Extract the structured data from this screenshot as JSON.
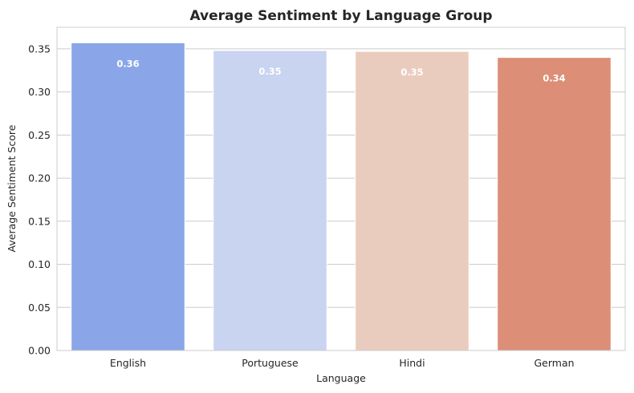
{
  "chart_data": {
    "type": "bar",
    "title": "Average Sentiment by Language Group",
    "xlabel": "Language",
    "ylabel": "Average Sentiment Score",
    "categories": [
      "English",
      "Portuguese",
      "Hindi",
      "German"
    ],
    "values": [
      0.357,
      0.348,
      0.347,
      0.34
    ],
    "data_labels": [
      "0.36",
      "0.35",
      "0.35",
      "0.34"
    ],
    "colors": [
      "#8aa6e8",
      "#c8d4f0",
      "#eaccbe",
      "#dc8e77"
    ],
    "ylim": [
      0,
      0.375
    ],
    "yticks": [
      0.0,
      0.05,
      0.1,
      0.15,
      0.2,
      0.25,
      0.3,
      0.35
    ],
    "ytick_labels": [
      "0.00",
      "0.05",
      "0.10",
      "0.15",
      "0.20",
      "0.25",
      "0.30",
      "0.35"
    ],
    "grid": "horizontal",
    "legend": "none"
  }
}
